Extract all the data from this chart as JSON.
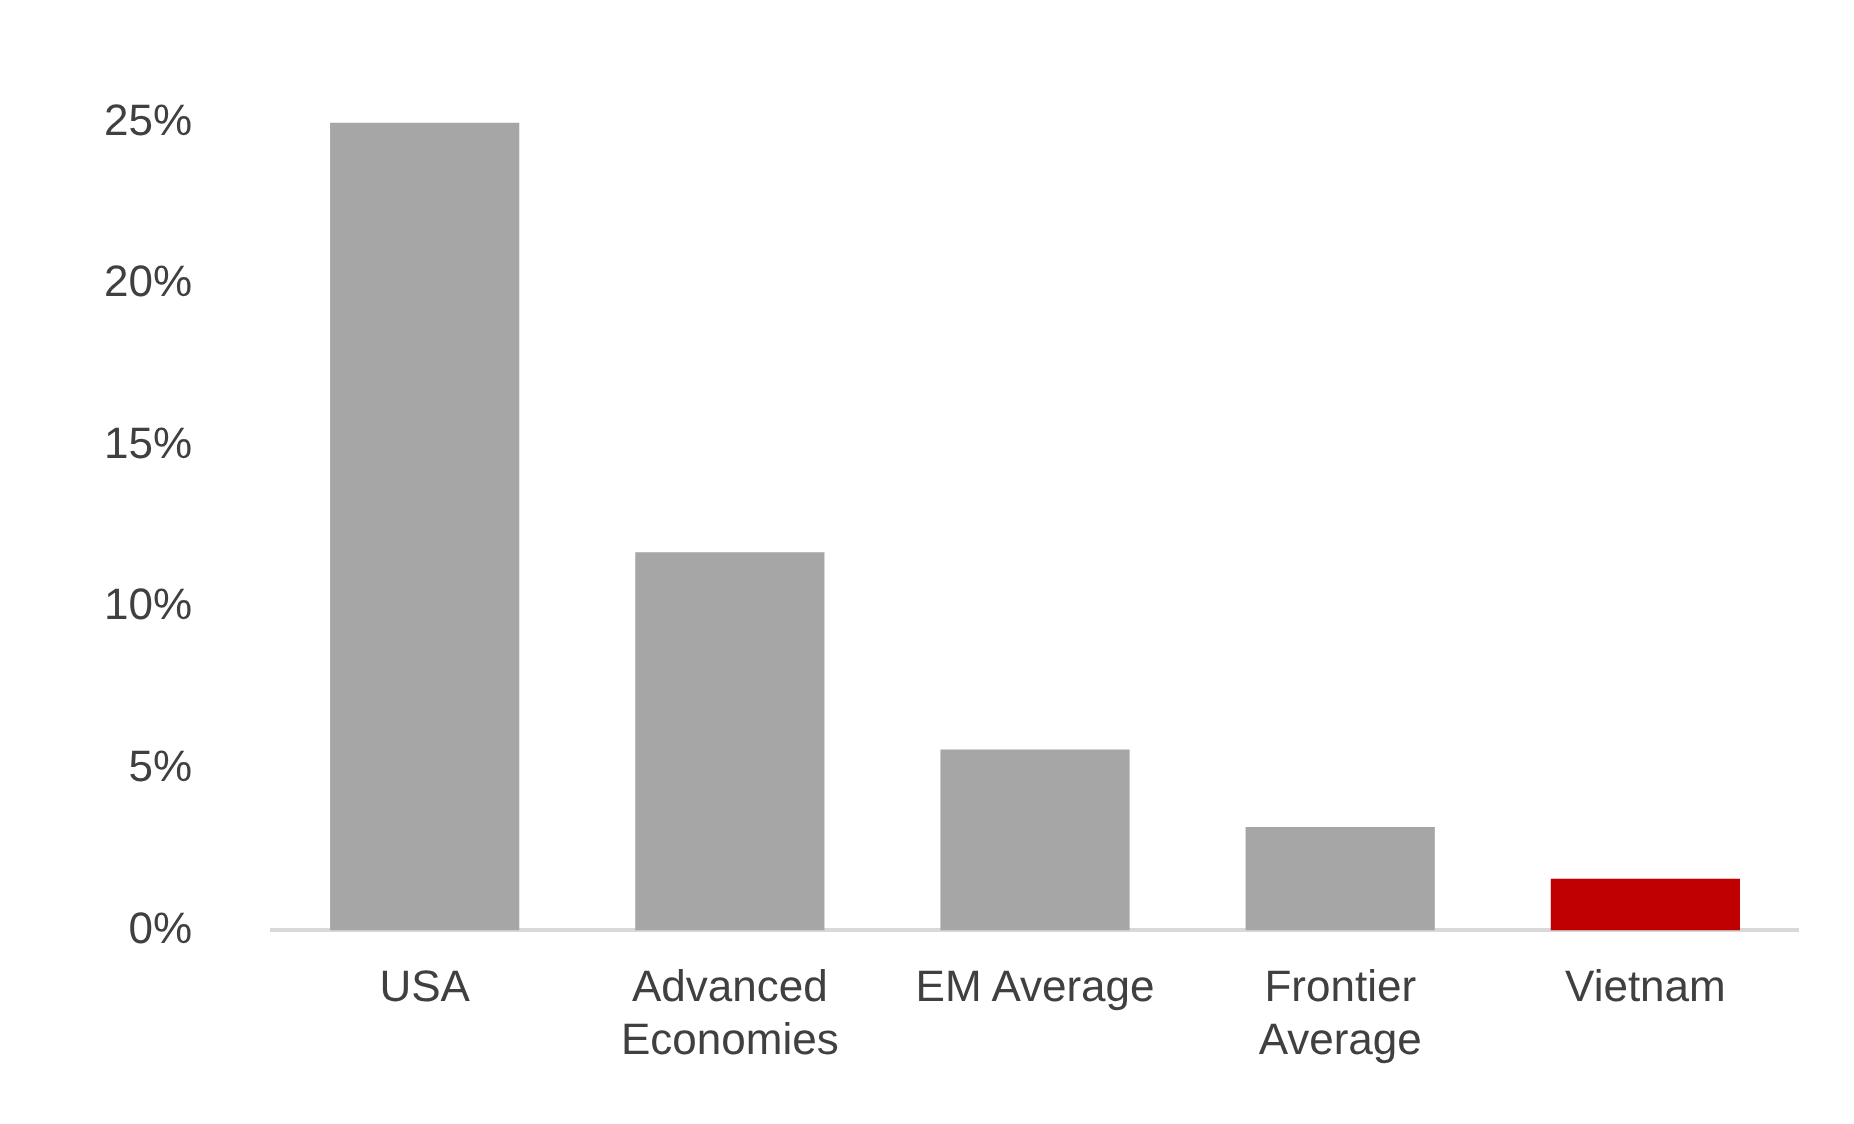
{
  "chart_data": {
    "type": "bar",
    "categories": [
      "USA",
      "Advanced Economies",
      "EM Average",
      "Frontier Average",
      "Vietnam"
    ],
    "values": [
      25.0,
      11.7,
      5.6,
      3.2,
      1.6
    ],
    "colors": [
      "#a6a6a6",
      "#a6a6a6",
      "#a6a6a6",
      "#a6a6a6",
      "#c00000"
    ],
    "ylim": [
      0,
      25
    ],
    "yticks": [
      {
        "value": 0,
        "label": "0%"
      },
      {
        "value": 5,
        "label": "5%"
      },
      {
        "value": 10,
        "label": "10%"
      },
      {
        "value": 15,
        "label": "15%"
      },
      {
        "value": 20,
        "label": "20%"
      },
      {
        "value": 25,
        "label": "25%"
      }
    ],
    "grid": false,
    "legend": false
  }
}
